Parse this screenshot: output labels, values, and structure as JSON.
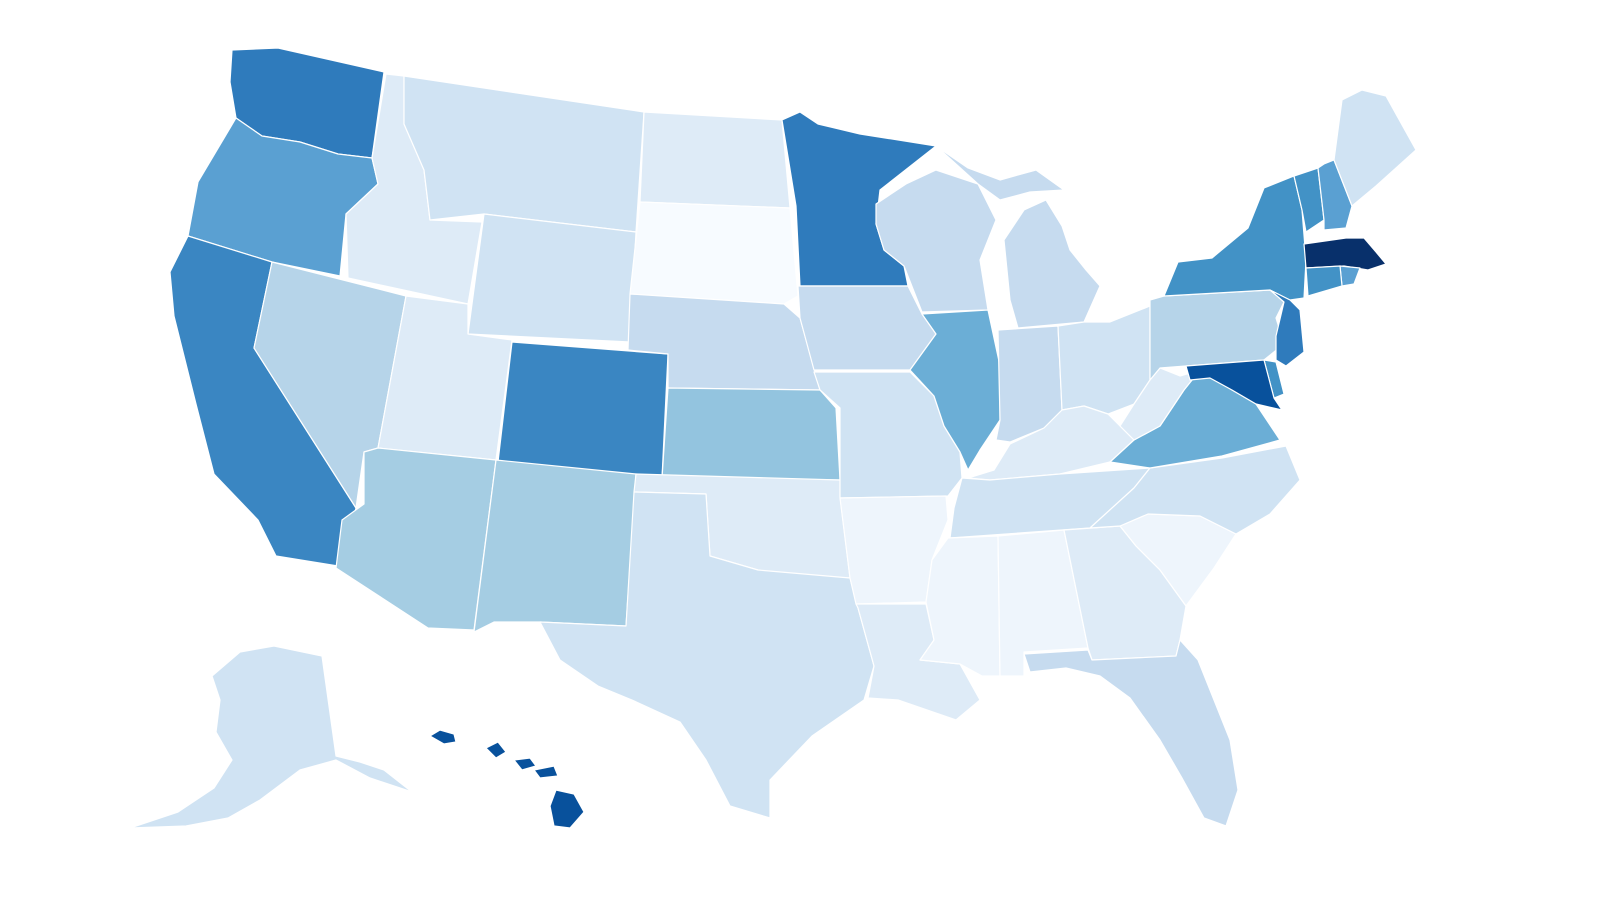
{
  "map": {
    "type": "us-choropleth",
    "color_scale": "blues",
    "tiers": {
      "1": "#f7fbff",
      "2": "#eef5fc",
      "3": "#deebf7",
      "4": "#d0e3f3",
      "5": "#c6dbef",
      "6": "#b6d4e9",
      "7": "#a5cde3",
      "8": "#93c4df",
      "9": "#6baed6",
      "10": "#5aa0d2",
      "11": "#4292c6",
      "12": "#3a86c2",
      "13": "#2f7bbc",
      "14": "#08519c",
      "15": "#08306b"
    },
    "states": [
      {
        "id": "WA",
        "level": 13
      },
      {
        "id": "OR",
        "level": 10
      },
      {
        "id": "CA",
        "level": 12
      },
      {
        "id": "ID",
        "level": 3
      },
      {
        "id": "NV",
        "level": 6
      },
      {
        "id": "MT",
        "level": 4
      },
      {
        "id": "WY",
        "level": 4
      },
      {
        "id": "UT",
        "level": 3
      },
      {
        "id": "AZ",
        "level": 7
      },
      {
        "id": "CO",
        "level": 12
      },
      {
        "id": "NM",
        "level": 7
      },
      {
        "id": "ND",
        "level": 3
      },
      {
        "id": "SD",
        "level": 1
      },
      {
        "id": "NE",
        "level": 5
      },
      {
        "id": "KS",
        "level": 8
      },
      {
        "id": "OK",
        "level": 3
      },
      {
        "id": "TX",
        "level": 4
      },
      {
        "id": "MN",
        "level": 13
      },
      {
        "id": "IA",
        "level": 5
      },
      {
        "id": "MO",
        "level": 4
      },
      {
        "id": "AR",
        "level": 2
      },
      {
        "id": "LA",
        "level": 3
      },
      {
        "id": "WI",
        "level": 5
      },
      {
        "id": "IL",
        "level": 9
      },
      {
        "id": "MI",
        "level": 5
      },
      {
        "id": "IN",
        "level": 5
      },
      {
        "id": "OH",
        "level": 4
      },
      {
        "id": "KY",
        "level": 3
      },
      {
        "id": "TN",
        "level": 4
      },
      {
        "id": "MS",
        "level": 2
      },
      {
        "id": "AL",
        "level": 2
      },
      {
        "id": "GA",
        "level": 3
      },
      {
        "id": "FL",
        "level": 5
      },
      {
        "id": "SC",
        "level": 2
      },
      {
        "id": "NC",
        "level": 4
      },
      {
        "id": "VA",
        "level": 9
      },
      {
        "id": "WV",
        "level": 3
      },
      {
        "id": "PA",
        "level": 6
      },
      {
        "id": "NY",
        "level": 11
      },
      {
        "id": "VT",
        "level": 11
      },
      {
        "id": "NH",
        "level": 10
      },
      {
        "id": "ME",
        "level": 4
      },
      {
        "id": "MA",
        "level": 15
      },
      {
        "id": "RI",
        "level": 10
      },
      {
        "id": "CT",
        "level": 11
      },
      {
        "id": "NJ",
        "level": 13
      },
      {
        "id": "DE",
        "level": 11
      },
      {
        "id": "MD",
        "level": 14
      },
      {
        "id": "AK",
        "level": 4
      },
      {
        "id": "HI",
        "level": 14
      }
    ]
  }
}
